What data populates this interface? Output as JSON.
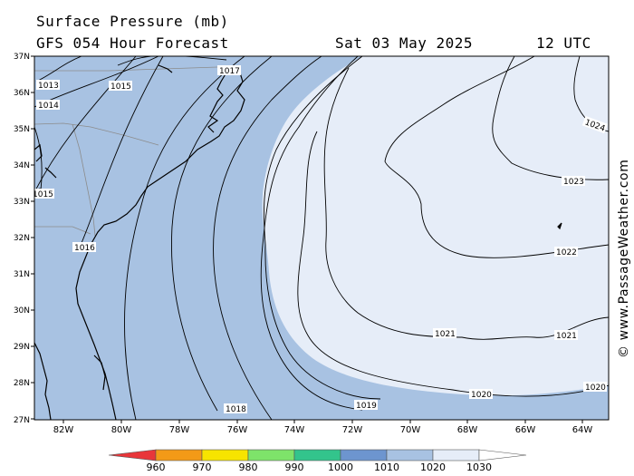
{
  "title": {
    "line1": "Surface Pressure (mb)",
    "line2": "GFS 054 Hour Forecast",
    "date": "Sat 03 May 2025",
    "time": "12 UTC"
  },
  "credit": "© www.PassageWeather.com",
  "map": {
    "lat_labels": [
      "37N",
      "36N",
      "35N",
      "34N",
      "33N",
      "32N",
      "31N",
      "30N",
      "29N",
      "28N",
      "27N"
    ],
    "lon_labels": [
      "82W",
      "80W",
      "78W",
      "76W",
      "74W",
      "72W",
      "70W",
      "68W",
      "66W",
      "64W"
    ],
    "contour_labels": [
      "1013",
      "1015",
      "1014",
      "1015",
      "1016",
      "1017",
      "1018",
      "1019",
      "1020",
      "1020",
      "1021",
      "1021",
      "1022",
      "1023",
      "1024"
    ]
  },
  "legend": {
    "values": [
      "960",
      "970",
      "980",
      "990",
      "1000",
      "1010",
      "1020",
      "1030"
    ],
    "colors": [
      "#e8363a",
      "#f39a17",
      "#f7e400",
      "#7ee36a",
      "#33c48c",
      "#6d95cf",
      "#a8c2e2",
      "#e6edf8",
      "#ffffff"
    ]
  },
  "colors": {
    "band_1010_1020": "#a8c2e2",
    "band_1020_1030": "#e6edf8",
    "coast": "#000000",
    "state_border": "#8c8c8c"
  }
}
